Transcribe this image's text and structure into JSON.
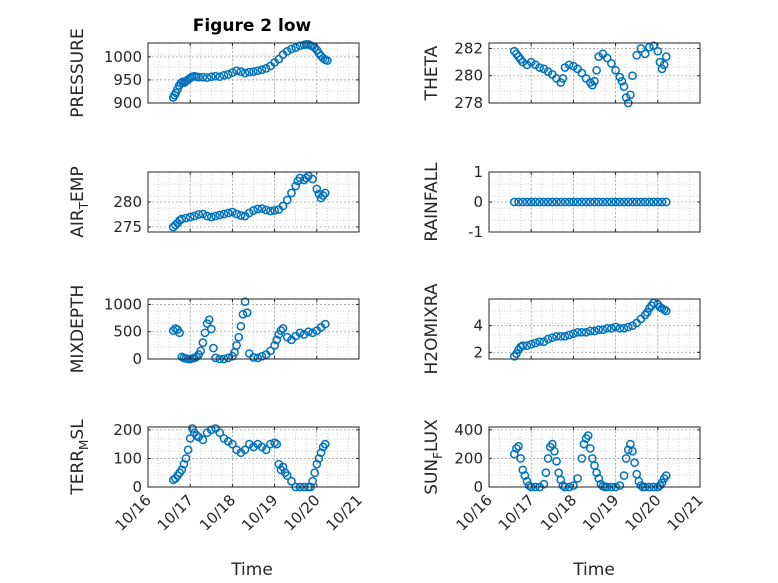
{
  "figure": {
    "title": "Figure 2 low",
    "xlabel": "Time",
    "xticklabels": [
      "10/16",
      "10/17",
      "10/18",
      "10/19",
      "10/20",
      "10/21"
    ],
    "marker_color": "#0072BD"
  },
  "chart_data": [
    {
      "type": "scatter",
      "ylabel": "PRESSURE",
      "ylim": [
        900,
        1030
      ],
      "yticks": [
        900,
        950,
        1000
      ],
      "yticklabels": [
        "900",
        "950",
        "1000"
      ],
      "xlim": [
        0,
        5
      ],
      "grid": true,
      "x": [
        0.6,
        0.63,
        0.66,
        0.7,
        0.74,
        0.78,
        0.82,
        0.86,
        0.9,
        0.95,
        1.0,
        1.05,
        1.1,
        1.15,
        1.2,
        1.3,
        1.4,
        1.5,
        1.6,
        1.7,
        1.8,
        1.9,
        2.0,
        2.1,
        2.2,
        2.3,
        2.4,
        2.5,
        2.6,
        2.7,
        2.8,
        2.9,
        3.0,
        3.1,
        3.2,
        3.3,
        3.4,
        3.5,
        3.6,
        3.7,
        3.75,
        3.8,
        3.85,
        3.9,
        3.95,
        4.0,
        4.05,
        4.1,
        4.15,
        4.2,
        4.25
      ],
      "y": [
        912,
        917,
        922,
        930,
        938,
        943,
        946,
        944,
        947,
        951,
        954,
        957,
        958,
        957,
        956,
        956,
        955,
        957,
        958,
        957,
        960,
        962,
        966,
        970,
        968,
        965,
        967,
        968,
        970,
        972,
        975,
        980,
        988,
        995,
        1005,
        1012,
        1017,
        1020,
        1024,
        1026,
        1027,
        1027,
        1025,
        1023,
        1020,
        1015,
        1008,
        1002,
        997,
        994,
        992
      ]
    },
    {
      "type": "scatter",
      "ylabel": "THETA",
      "ylim": [
        278,
        282.4
      ],
      "yticks": [
        278,
        280,
        282
      ],
      "yticklabels": [
        "278",
        "280",
        "282"
      ],
      "xlim": [
        0,
        5
      ],
      "grid": true,
      "x": [
        0.6,
        0.65,
        0.7,
        0.75,
        0.8,
        0.9,
        1.0,
        1.1,
        1.2,
        1.3,
        1.4,
        1.5,
        1.6,
        1.7,
        1.75,
        1.8,
        1.9,
        2.0,
        2.1,
        2.2,
        2.3,
        2.4,
        2.45,
        2.5,
        2.55,
        2.6,
        2.7,
        2.8,
        2.9,
        3.0,
        3.1,
        3.15,
        3.2,
        3.25,
        3.3,
        3.35,
        3.4,
        3.5,
        3.6,
        3.7,
        3.8,
        3.9,
        4.0,
        4.05,
        4.1,
        4.15,
        4.2
      ],
      "y": [
        281.8,
        281.6,
        281.4,
        281.2,
        281.0,
        280.8,
        281.0,
        280.8,
        280.6,
        280.5,
        280.3,
        280.1,
        279.8,
        279.5,
        279.8,
        280.6,
        280.8,
        280.7,
        280.5,
        280.2,
        279.8,
        279.5,
        279.3,
        279.6,
        280.4,
        281.4,
        281.6,
        281.3,
        280.9,
        280.4,
        279.9,
        279.6,
        279.2,
        278.4,
        278.0,
        278.6,
        280.0,
        281.5,
        282.0,
        281.6,
        282.1,
        282.2,
        281.8,
        281.0,
        280.5,
        280.8,
        281.4
      ]
    },
    {
      "type": "scatter",
      "ylabel": "AIR_TEMP",
      "ylim": [
        274,
        286
      ],
      "yticks": [
        275,
        280
      ],
      "yticklabels": [
        "275",
        "280"
      ],
      "xlim": [
        0,
        5
      ],
      "grid": true,
      "x": [
        0.6,
        0.65,
        0.7,
        0.75,
        0.8,
        0.9,
        1.0,
        1.1,
        1.2,
        1.3,
        1.4,
        1.5,
        1.6,
        1.7,
        1.8,
        1.9,
        2.0,
        2.1,
        2.2,
        2.3,
        2.4,
        2.5,
        2.6,
        2.7,
        2.8,
        2.9,
        3.0,
        3.1,
        3.2,
        3.3,
        3.4,
        3.5,
        3.55,
        3.6,
        3.7,
        3.75,
        3.8,
        3.9,
        4.0,
        4.05,
        4.1,
        4.15,
        4.2
      ],
      "y": [
        275.0,
        275.4,
        275.8,
        276.3,
        276.6,
        276.8,
        277.0,
        277.2,
        277.5,
        277.6,
        277.2,
        277.0,
        277.2,
        277.4,
        277.6,
        277.8,
        278.0,
        277.6,
        277.3,
        277.2,
        277.8,
        278.3,
        278.6,
        278.7,
        278.4,
        278.2,
        278.3,
        278.5,
        279.2,
        280.4,
        281.8,
        283.2,
        284.2,
        284.8,
        284.4,
        284.8,
        285.2,
        284.6,
        282.6,
        281.6,
        280.8,
        281.3,
        281.8
      ]
    },
    {
      "type": "scatter",
      "ylabel": "RAINFALL",
      "ylim": [
        -1,
        1
      ],
      "yticks": [
        -1,
        0,
        1
      ],
      "yticklabels": [
        "-1",
        "0",
        "1"
      ],
      "xlim": [
        0,
        5
      ],
      "grid": true,
      "x": [
        0.6,
        0.7,
        0.8,
        0.9,
        1.0,
        1.1,
        1.2,
        1.3,
        1.4,
        1.5,
        1.6,
        1.7,
        1.8,
        1.9,
        2.0,
        2.1,
        2.2,
        2.3,
        2.4,
        2.5,
        2.6,
        2.7,
        2.8,
        2.9,
        3.0,
        3.1,
        3.2,
        3.3,
        3.4,
        3.5,
        3.6,
        3.7,
        3.8,
        3.9,
        4.0,
        4.1,
        4.2
      ],
      "y": [
        0,
        0,
        0,
        0,
        0,
        0,
        0,
        0,
        0,
        0,
        0,
        0,
        0,
        0,
        0,
        0,
        0,
        0,
        0,
        0,
        0,
        0,
        0,
        0,
        0,
        0,
        0,
        0,
        0,
        0,
        0,
        0,
        0,
        0,
        0,
        0,
        0
      ]
    },
    {
      "type": "scatter",
      "ylabel": "MIXDEPTH",
      "ylim": [
        0,
        1100
      ],
      "yticks": [
        0,
        500,
        1000
      ],
      "yticklabels": [
        "0",
        "500",
        "1000"
      ],
      "xlim": [
        0,
        5
      ],
      "grid": true,
      "x": [
        0.6,
        0.65,
        0.7,
        0.75,
        0.8,
        0.85,
        0.9,
        0.95,
        1.0,
        1.05,
        1.1,
        1.15,
        1.2,
        1.25,
        1.3,
        1.35,
        1.4,
        1.45,
        1.5,
        1.55,
        1.6,
        1.7,
        1.8,
        1.9,
        2.0,
        2.05,
        2.1,
        2.15,
        2.2,
        2.25,
        2.3,
        2.35,
        2.4,
        2.5,
        2.6,
        2.7,
        2.8,
        2.9,
        3.0,
        3.05,
        3.1,
        3.15,
        3.2,
        3.3,
        3.4,
        3.5,
        3.6,
        3.7,
        3.8,
        3.9,
        4.0,
        4.1,
        4.2
      ],
      "y": [
        520,
        560,
        540,
        480,
        40,
        20,
        10,
        0,
        0,
        10,
        20,
        40,
        80,
        150,
        300,
        480,
        650,
        720,
        550,
        200,
        20,
        0,
        0,
        20,
        50,
        120,
        250,
        400,
        600,
        820,
        1050,
        850,
        100,
        30,
        20,
        50,
        80,
        150,
        250,
        350,
        450,
        520,
        560,
        400,
        350,
        420,
        480,
        450,
        500,
        480,
        520,
        580,
        640
      ]
    },
    {
      "type": "scatter",
      "ylabel": "H2OMIXRA",
      "ylim": [
        1.5,
        6
      ],
      "yticks": [
        2,
        4
      ],
      "yticklabels": [
        "2",
        "4"
      ],
      "xlim": [
        0,
        5
      ],
      "grid": true,
      "x": [
        0.6,
        0.65,
        0.7,
        0.75,
        0.8,
        0.9,
        1.0,
        1.1,
        1.2,
        1.3,
        1.4,
        1.5,
        1.6,
        1.7,
        1.8,
        1.9,
        2.0,
        2.1,
        2.2,
        2.3,
        2.4,
        2.5,
        2.6,
        2.7,
        2.8,
        2.9,
        3.0,
        3.1,
        3.2,
        3.3,
        3.4,
        3.5,
        3.6,
        3.7,
        3.75,
        3.8,
        3.85,
        3.9,
        4.0,
        4.05,
        4.1,
        4.15,
        4.2
      ],
      "y": [
        1.7,
        1.9,
        2.2,
        2.4,
        2.5,
        2.5,
        2.6,
        2.7,
        2.8,
        2.8,
        3.0,
        3.1,
        3.2,
        3.2,
        3.2,
        3.3,
        3.4,
        3.5,
        3.5,
        3.5,
        3.6,
        3.6,
        3.7,
        3.7,
        3.8,
        3.8,
        3.9,
        3.8,
        3.8,
        3.9,
        4.0,
        4.2,
        4.5,
        4.8,
        5.0,
        5.3,
        5.5,
        5.7,
        5.6,
        5.4,
        5.3,
        5.2,
        5.1
      ]
    },
    {
      "type": "scatter",
      "ylabel": "TERR_MSL",
      "ylim": [
        0,
        210
      ],
      "yticks": [
        0,
        100,
        200
      ],
      "yticklabels": [
        "0",
        "100",
        "200"
      ],
      "xlim": [
        0,
        5
      ],
      "grid": true,
      "x": [
        0.6,
        0.65,
        0.7,
        0.75,
        0.8,
        0.85,
        0.9,
        0.95,
        1.0,
        1.05,
        1.1,
        1.15,
        1.2,
        1.3,
        1.4,
        1.5,
        1.6,
        1.7,
        1.8,
        1.9,
        2.0,
        2.1,
        2.2,
        2.3,
        2.4,
        2.5,
        2.6,
        2.7,
        2.8,
        2.9,
        3.0,
        3.05,
        3.1,
        3.15,
        3.2,
        3.25,
        3.3,
        3.4,
        3.5,
        3.6,
        3.7,
        3.8,
        3.85,
        3.9,
        3.95,
        4.0,
        4.05,
        4.1,
        4.15,
        4.2
      ],
      "y": [
        25,
        30,
        40,
        50,
        60,
        80,
        100,
        130,
        170,
        205,
        190,
        180,
        175,
        165,
        190,
        200,
        205,
        190,
        170,
        160,
        150,
        130,
        120,
        130,
        150,
        140,
        150,
        140,
        130,
        150,
        155,
        150,
        80,
        60,
        70,
        50,
        40,
        20,
        0,
        0,
        0,
        0,
        0,
        20,
        50,
        80,
        100,
        120,
        140,
        150
      ]
    },
    {
      "type": "scatter",
      "ylabel": "SUN_FLUX",
      "ylim": [
        0,
        420
      ],
      "yticks": [
        0,
        200,
        400
      ],
      "yticklabels": [
        "0",
        "200",
        "400"
      ],
      "xlim": [
        0,
        5
      ],
      "grid": true,
      "x": [
        0.6,
        0.65,
        0.7,
        0.75,
        0.8,
        0.85,
        0.9,
        0.95,
        1.0,
        1.1,
        1.2,
        1.3,
        1.35,
        1.4,
        1.45,
        1.5,
        1.55,
        1.6,
        1.65,
        1.7,
        1.75,
        1.8,
        1.9,
        2.0,
        2.1,
        2.2,
        2.25,
        2.3,
        2.35,
        2.4,
        2.45,
        2.5,
        2.55,
        2.6,
        2.65,
        2.7,
        2.75,
        2.8,
        2.9,
        3.0,
        3.1,
        3.2,
        3.25,
        3.3,
        3.35,
        3.4,
        3.45,
        3.5,
        3.55,
        3.6,
        3.65,
        3.7,
        3.8,
        3.9,
        4.0,
        4.05,
        4.1,
        4.15,
        4.2
      ],
      "y": [
        230,
        270,
        285,
        200,
        120,
        80,
        40,
        10,
        0,
        0,
        0,
        20,
        100,
        200,
        280,
        300,
        250,
        180,
        100,
        50,
        10,
        0,
        0,
        10,
        60,
        200,
        300,
        340,
        360,
        270,
        200,
        150,
        100,
        60,
        20,
        5,
        0,
        0,
        0,
        0,
        10,
        80,
        200,
        260,
        300,
        250,
        170,
        90,
        40,
        10,
        0,
        0,
        0,
        0,
        0,
        10,
        30,
        60,
        80
      ]
    }
  ]
}
